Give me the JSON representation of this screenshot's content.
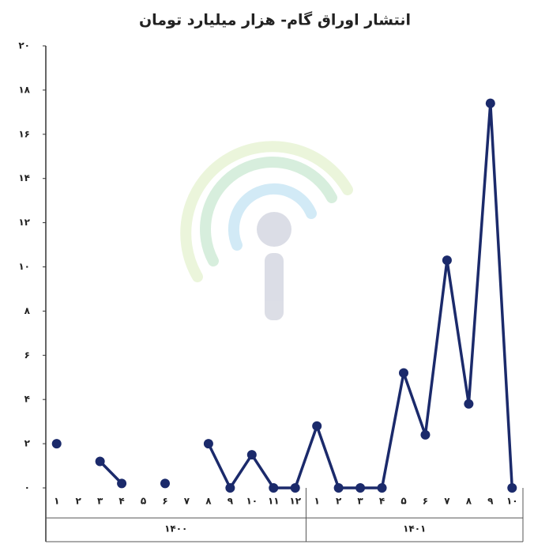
{
  "chart_data": {
    "type": "line",
    "title": "انتشار اوراق گام- هزار میلیارد تومان",
    "groups": [
      {
        "label": "۱۴۰۰",
        "categories": [
          "۱",
          "۲",
          "۳",
          "۴",
          "۵",
          "۶",
          "۷",
          "۸",
          "۹",
          "۱۰",
          "۱۱",
          "۱۲"
        ]
      },
      {
        "label": "۱۴۰۱",
        "categories": [
          "۱",
          "۲",
          "۳",
          "۴",
          "۵",
          "۶",
          "۷",
          "۸",
          "۹",
          "۱۰"
        ]
      }
    ],
    "series": [
      {
        "color": "#1b2a6b",
        "values": [
          2.0,
          null,
          1.2,
          0.2,
          null,
          0.2,
          null,
          2.0,
          0,
          1.5,
          0,
          0,
          2.8,
          0,
          0,
          0,
          5.2,
          2.4,
          10.3,
          3.8,
          17.4,
          0
        ]
      }
    ],
    "ylim": [
      0,
      20
    ],
    "yticks": [
      {
        "value": 0,
        "label": "۰"
      },
      {
        "value": 2,
        "label": "۲"
      },
      {
        "value": 4,
        "label": "۴"
      },
      {
        "value": 6,
        "label": "۶"
      },
      {
        "value": 8,
        "label": "۸"
      },
      {
        "value": 10,
        "label": "۱۰"
      },
      {
        "value": 12,
        "label": "۱۲"
      },
      {
        "value": 14,
        "label": "۱۴"
      },
      {
        "value": 16,
        "label": "۱۶"
      },
      {
        "value": 18,
        "label": "۱۸"
      },
      {
        "value": 20,
        "label": "۲۰"
      }
    ],
    "grid": false
  }
}
